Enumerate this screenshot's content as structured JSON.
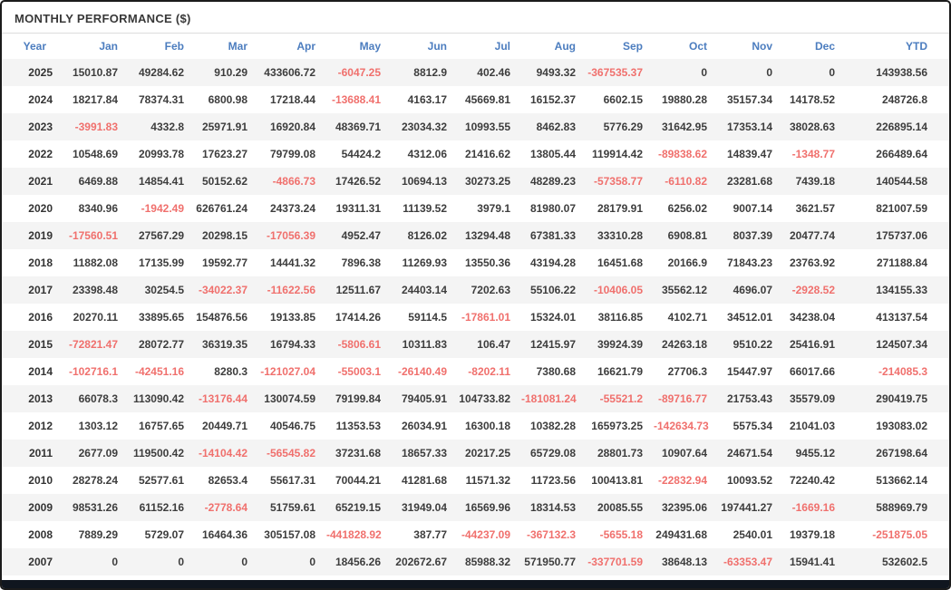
{
  "panel": {
    "title": "MONTHLY PERFORMANCE ($)"
  },
  "colors": {
    "header_blue": "#4c7dbf",
    "negative_red": "#f0706d",
    "positive_text": "#3d3d3d",
    "stripe_gray": "#f4f4f4",
    "bottom_bar": "#10161f"
  },
  "chart_data": {
    "type": "table",
    "title": "MONTHLY PERFORMANCE ($)",
    "columns": [
      "Year",
      "Jan",
      "Feb",
      "Mar",
      "Apr",
      "May",
      "Jun",
      "Jul",
      "Aug",
      "Sep",
      "Oct",
      "Nov",
      "Dec",
      "YTD"
    ],
    "rows": [
      {
        "year": "2025",
        "values": [
          "15010.87",
          "49284.62",
          "910.29",
          "433606.72",
          "-6047.25",
          "8812.9",
          "402.46",
          "9493.32",
          "-367535.37",
          "0",
          "0",
          "0",
          "143938.56"
        ]
      },
      {
        "year": "2024",
        "values": [
          "18217.84",
          "78374.31",
          "6800.98",
          "17218.44",
          "-13688.41",
          "4163.17",
          "45669.81",
          "16152.37",
          "6602.15",
          "19880.28",
          "35157.34",
          "14178.52",
          "248726.8"
        ]
      },
      {
        "year": "2023",
        "values": [
          "-3991.83",
          "4332.8",
          "25971.91",
          "16920.84",
          "48369.71",
          "23034.32",
          "10993.55",
          "8462.83",
          "5776.29",
          "31642.95",
          "17353.14",
          "38028.63",
          "226895.14"
        ]
      },
      {
        "year": "2022",
        "values": [
          "10548.69",
          "20993.78",
          "17623.27",
          "79799.08",
          "54424.2",
          "4312.06",
          "21416.62",
          "13805.44",
          "119914.42",
          "-89838.62",
          "14839.47",
          "-1348.77",
          "266489.64"
        ]
      },
      {
        "year": "2021",
        "values": [
          "6469.88",
          "14854.41",
          "50152.62",
          "-4866.73",
          "17426.52",
          "10694.13",
          "30273.25",
          "48289.23",
          "-57358.77",
          "-6110.82",
          "23281.68",
          "7439.18",
          "140544.58"
        ]
      },
      {
        "year": "2020",
        "values": [
          "8340.96",
          "-1942.49",
          "626761.24",
          "24373.24",
          "19311.31",
          "11139.52",
          "3979.1",
          "81980.07",
          "28179.91",
          "6256.02",
          "9007.14",
          "3621.57",
          "821007.59"
        ]
      },
      {
        "year": "2019",
        "values": [
          "-17560.51",
          "27567.29",
          "20298.15",
          "-17056.39",
          "4952.47",
          "8126.02",
          "13294.48",
          "67381.33",
          "33310.28",
          "6908.81",
          "8037.39",
          "20477.74",
          "175737.06"
        ]
      },
      {
        "year": "2018",
        "values": [
          "11882.08",
          "17135.99",
          "19592.77",
          "14441.32",
          "7896.38",
          "11269.93",
          "13550.36",
          "43194.28",
          "16451.68",
          "20166.9",
          "71843.23",
          "23763.92",
          "271188.84"
        ]
      },
      {
        "year": "2017",
        "values": [
          "23398.48",
          "30254.5",
          "-34022.37",
          "-11622.56",
          "12511.67",
          "24403.14",
          "7202.63",
          "55106.22",
          "-10406.05",
          "35562.12",
          "4696.07",
          "-2928.52",
          "134155.33"
        ]
      },
      {
        "year": "2016",
        "values": [
          "20270.11",
          "33895.65",
          "154876.56",
          "19133.85",
          "17414.26",
          "59114.5",
          "-17861.01",
          "15324.01",
          "38116.85",
          "4102.71",
          "34512.01",
          "34238.04",
          "413137.54"
        ]
      },
      {
        "year": "2015",
        "values": [
          "-72821.47",
          "28072.77",
          "36319.35",
          "16794.33",
          "-5806.61",
          "10311.83",
          "106.47",
          "12415.97",
          "39924.39",
          "24263.18",
          "9510.22",
          "25416.91",
          "124507.34"
        ]
      },
      {
        "year": "2014",
        "values": [
          "-102716.1",
          "-42451.16",
          "8280.3",
          "-121027.04",
          "-55003.1",
          "-26140.49",
          "-8202.11",
          "7380.68",
          "16621.79",
          "27706.3",
          "15447.97",
          "66017.66",
          "-214085.3"
        ]
      },
      {
        "year": "2013",
        "values": [
          "66078.3",
          "113090.42",
          "-13176.44",
          "130074.59",
          "79199.84",
          "79405.91",
          "104733.82",
          "-181081.24",
          "-55521.2",
          "-89716.77",
          "21753.43",
          "35579.09",
          "290419.75"
        ]
      },
      {
        "year": "2012",
        "values": [
          "1303.12",
          "16757.65",
          "20449.71",
          "40546.75",
          "11353.53",
          "26034.91",
          "16300.18",
          "10382.28",
          "165973.25",
          "-142634.73",
          "5575.34",
          "21041.03",
          "193083.02"
        ]
      },
      {
        "year": "2011",
        "values": [
          "2677.09",
          "119500.42",
          "-14104.42",
          "-56545.82",
          "37231.68",
          "18657.33",
          "20217.25",
          "65729.08",
          "28801.73",
          "10907.64",
          "24671.54",
          "9455.12",
          "267198.64"
        ]
      },
      {
        "year": "2010",
        "values": [
          "28278.24",
          "52577.61",
          "82653.4",
          "55617.31",
          "70044.21",
          "41281.68",
          "11571.32",
          "11723.56",
          "100413.81",
          "-22832.94",
          "10093.52",
          "72240.42",
          "513662.14"
        ]
      },
      {
        "year": "2009",
        "values": [
          "98531.26",
          "61152.16",
          "-2778.64",
          "51759.61",
          "65219.15",
          "31949.04",
          "16569.96",
          "18314.53",
          "20085.55",
          "32395.06",
          "197441.27",
          "-1669.16",
          "588969.79"
        ]
      },
      {
        "year": "2008",
        "values": [
          "7889.29",
          "5729.07",
          "16464.36",
          "305157.08",
          "-441828.92",
          "387.77",
          "-44237.09",
          "-367132.3",
          "-5655.18",
          "249431.68",
          "2540.01",
          "19379.18",
          "-251875.05"
        ]
      },
      {
        "year": "2007",
        "values": [
          "0",
          "0",
          "0",
          "0",
          "18456.26",
          "202672.67",
          "85988.32",
          "571950.77",
          "-337701.59",
          "38648.13",
          "-63353.47",
          "15941.41",
          "532602.5"
        ]
      }
    ]
  }
}
